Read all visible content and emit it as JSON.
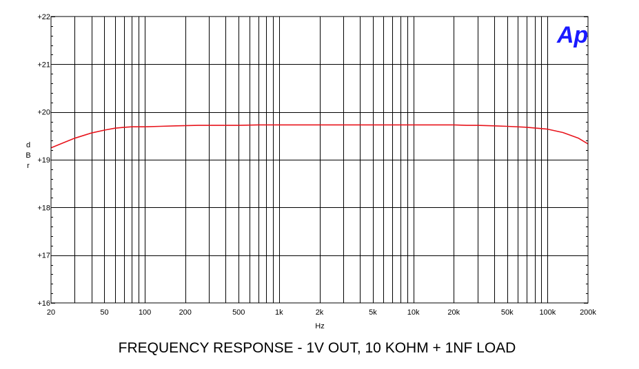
{
  "chart_data": {
    "type": "line",
    "title": "FREQUENCY RESPONSE - 1V OUT,  10 KOHM + 1NF LOAD",
    "xlabel": "Hz",
    "ylabel": "dBr",
    "x_scale": "log",
    "xlim": [
      20,
      200000
    ],
    "ylim": [
      16,
      22
    ],
    "grid": true,
    "logo": "Ap",
    "x_ticks": [
      {
        "value": 20,
        "label": "20"
      },
      {
        "value": 50,
        "label": "50"
      },
      {
        "value": 100,
        "label": "100"
      },
      {
        "value": 200,
        "label": "200"
      },
      {
        "value": 500,
        "label": "500"
      },
      {
        "value": 1000,
        "label": "1k"
      },
      {
        "value": 2000,
        "label": "2k"
      },
      {
        "value": 5000,
        "label": "5k"
      },
      {
        "value": 10000,
        "label": "10k"
      },
      {
        "value": 20000,
        "label": "20k"
      },
      {
        "value": 50000,
        "label": "50k"
      },
      {
        "value": 100000,
        "label": "100k"
      },
      {
        "value": 200000,
        "label": "200k"
      }
    ],
    "y_ticks": [
      {
        "value": 22,
        "label": "+22"
      },
      {
        "value": 21,
        "label": "+21"
      },
      {
        "value": 20,
        "label": "+20"
      },
      {
        "value": 19,
        "label": "+19"
      },
      {
        "value": 18,
        "label": "+18"
      },
      {
        "value": 17,
        "label": "+17"
      },
      {
        "value": 16,
        "label": "+16"
      }
    ],
    "series": [
      {
        "color": "#e8131b",
        "x": [
          20,
          25,
          30,
          40,
          50,
          60,
          70,
          80,
          100,
          130,
          170,
          250,
          300,
          400,
          500,
          700,
          1000,
          2000,
          5000,
          10000,
          20000,
          25000,
          30000,
          40000,
          50000,
          70000,
          100000,
          130000,
          170000,
          200000
        ],
        "y": [
          19.25,
          19.36,
          19.45,
          19.56,
          19.62,
          19.66,
          19.68,
          19.69,
          19.69,
          19.7,
          19.71,
          19.72,
          19.72,
          19.72,
          19.72,
          19.73,
          19.73,
          19.73,
          19.73,
          19.73,
          19.73,
          19.72,
          19.72,
          19.71,
          19.7,
          19.68,
          19.64,
          19.57,
          19.45,
          19.33
        ]
      }
    ]
  }
}
